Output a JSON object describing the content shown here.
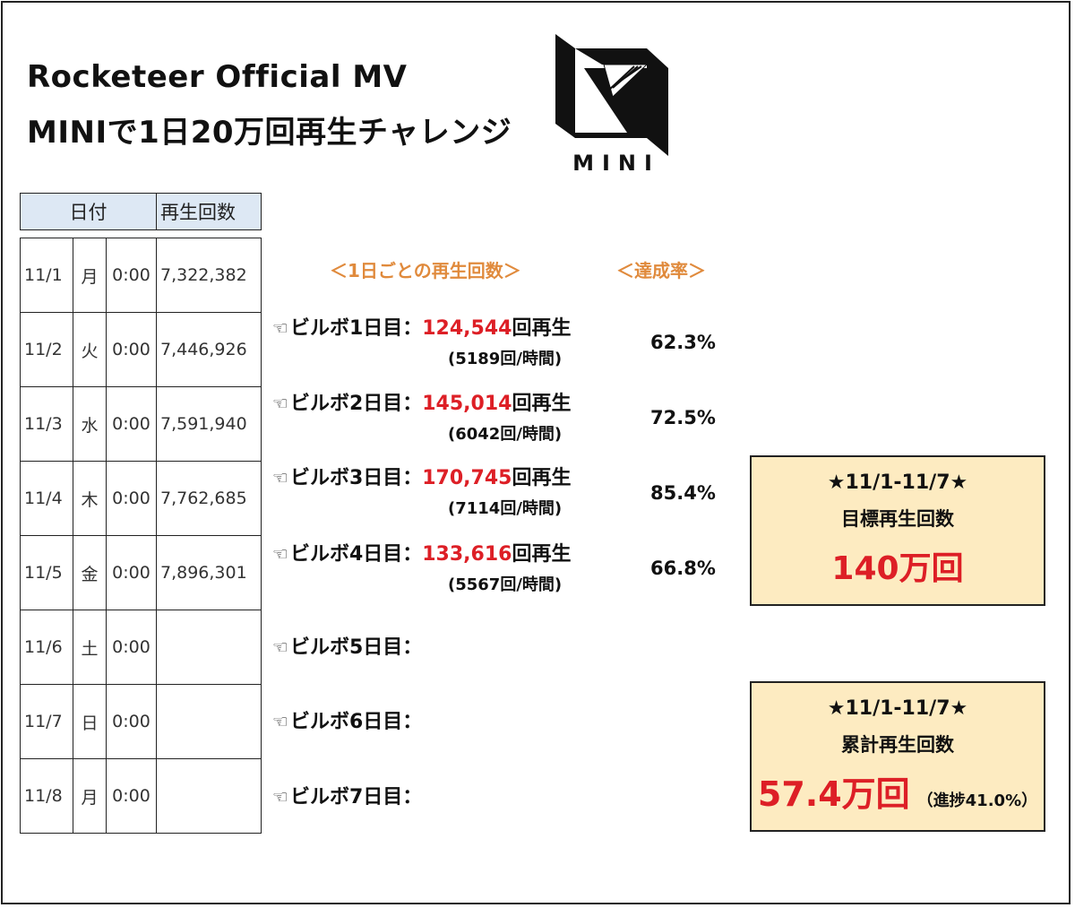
{
  "title": {
    "line1": "Rocketeer Official MV",
    "line2": "MINIで1日20万回再生チャレンジ"
  },
  "logo": {
    "text": "MINI"
  },
  "table": {
    "headers": {
      "date": "日付",
      "plays": "再生回数"
    },
    "rows": [
      {
        "date": "11/1",
        "dow": "月",
        "time": "0:00",
        "plays": "7,322,382"
      },
      {
        "date": "11/2",
        "dow": "火",
        "time": "0:00",
        "plays": "7,446,926"
      },
      {
        "date": "11/3",
        "dow": "水",
        "time": "0:00",
        "plays": "7,591,940"
      },
      {
        "date": "11/4",
        "dow": "木",
        "time": "0:00",
        "plays": "7,762,685"
      },
      {
        "date": "11/5",
        "dow": "金",
        "time": "0:00",
        "plays": "7,896,301"
      },
      {
        "date": "11/6",
        "dow": "土",
        "time": "0:00",
        "plays": ""
      },
      {
        "date": "11/7",
        "dow": "日",
        "time": "0:00",
        "plays": ""
      },
      {
        "date": "11/8",
        "dow": "月",
        "time": "0:00",
        "plays": ""
      }
    ]
  },
  "daily": {
    "header": "＜1日ごとの再生回数＞",
    "rate_header": "＜達成率＞",
    "icon_glyph": "☜",
    "days": [
      {
        "label": "ビルボ1日目：",
        "plays": "124,544",
        "suffix": "回再生",
        "per_hour": "(5189回/時間)",
        "rate": "62.3%"
      },
      {
        "label": "ビルボ2日目：",
        "plays": "145,014",
        "suffix": "回再生",
        "per_hour": "(6042回/時間)",
        "rate": "72.5%"
      },
      {
        "label": "ビルボ3日目：",
        "plays": "170,745",
        "suffix": "回再生",
        "per_hour": "(7114回/時間)",
        "rate": "85.4%"
      },
      {
        "label": "ビルボ4日目：",
        "plays": "133,616",
        "suffix": "回再生",
        "per_hour": "(5567回/時間)",
        "rate": "66.8%"
      },
      {
        "label": "ビルボ5日目："
      },
      {
        "label": "ビルボ6日目："
      },
      {
        "label": "ビルボ7日目："
      }
    ]
  },
  "target_box": {
    "period": "★11/1-11/7★",
    "label": "目標再生回数",
    "value": "140万回"
  },
  "total_box": {
    "period": "★11/1-11/7★",
    "label": "累計再生回数",
    "value": "57.4万回",
    "progress_note": "（進捗41.0%）"
  },
  "colors": {
    "accent_red": "#dd1f26",
    "header_orange": "#e08a3c",
    "box_fill": "#fdebc1",
    "table_header_fill": "#dde8f4"
  }
}
